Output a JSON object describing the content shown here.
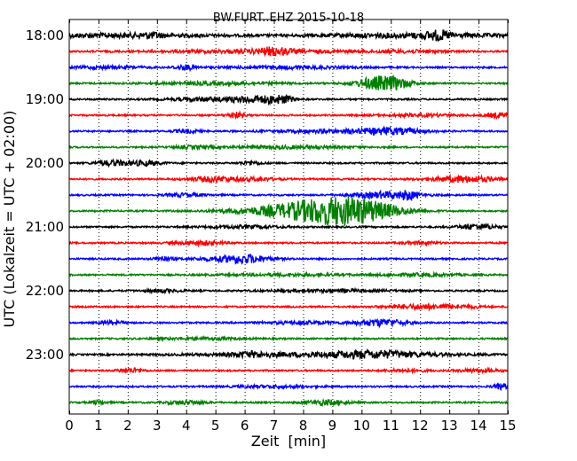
{
  "chart_data": {
    "type": "line",
    "title": "BW.FURT..EHZ 2015-10-18",
    "xlabel": "Zeit  [min]",
    "ylabel": "UTC (Lokalzeit = UTC + 02:00)",
    "xlim": [
      0,
      15
    ],
    "x_ticks": [
      "0",
      "1",
      "2",
      "3",
      "4",
      "5",
      "6",
      "7",
      "8",
      "9",
      "10",
      "11",
      "12",
      "13",
      "14",
      "15"
    ],
    "y_ticks": [
      "18:00",
      "19:00",
      "20:00",
      "21:00",
      "22:00",
      "23:00"
    ],
    "grid": "vertical dotted",
    "trace_colors": [
      "#000000",
      "#ff0000",
      "#0000ff",
      "#008000"
    ],
    "traces": [
      {
        "start": "18:00",
        "bursts": [
          [
            1.5,
            2.5,
            2.2
          ],
          [
            2.8,
            0.3,
            1.8
          ],
          [
            11.8,
            2.5,
            2.5
          ],
          [
            12.6,
            0.3,
            3.5
          ]
        ]
      },
      {
        "start": "18:15",
        "bursts": [
          [
            7.0,
            0.4,
            3.5
          ],
          [
            6.5,
            2.5,
            1.5
          ],
          [
            11.5,
            1.0,
            1.2
          ]
        ]
      },
      {
        "start": "18:30",
        "bursts": [
          [
            1.2,
            1.0,
            1.3
          ],
          [
            4.0,
            0.3,
            2.5
          ],
          [
            7.5,
            1.5,
            1.4
          ]
        ]
      },
      {
        "start": "18:45",
        "bursts": [
          [
            10.5,
            0.5,
            6.5
          ],
          [
            11.2,
            0.4,
            4.5
          ],
          [
            5.0,
            1.5,
            1.4
          ]
        ]
      },
      {
        "start": "19:00",
        "bursts": [
          [
            6.5,
            0.6,
            3.5
          ],
          [
            7.3,
            0.3,
            3.0
          ],
          [
            4.8,
            1.0,
            1.8
          ]
        ]
      },
      {
        "start": "19:15",
        "bursts": [
          [
            5.7,
            0.2,
            3.2
          ],
          [
            14.7,
            0.3,
            2.8
          ],
          [
            12.0,
            1.0,
            1.2
          ]
        ]
      },
      {
        "start": "19:30",
        "bursts": [
          [
            11.0,
            0.8,
            3.2
          ],
          [
            9.0,
            1.5,
            1.4
          ],
          [
            4.0,
            0.3,
            1.8
          ]
        ]
      },
      {
        "start": "19:45",
        "bursts": [
          [
            7.5,
            1.5,
            1.4
          ],
          [
            4.2,
            0.5,
            1.4
          ]
        ]
      },
      {
        "start": "20:00",
        "bursts": [
          [
            1.5,
            0.4,
            3.0
          ],
          [
            2.6,
            0.4,
            2.5
          ],
          [
            6.2,
            0.3,
            1.8
          ]
        ]
      },
      {
        "start": "20:15",
        "bursts": [
          [
            5.0,
            0.6,
            3.0
          ],
          [
            13.5,
            0.8,
            3.5
          ],
          [
            6.5,
            0.5,
            1.5
          ]
        ]
      },
      {
        "start": "20:30",
        "bursts": [
          [
            10.8,
            0.8,
            3.5
          ],
          [
            11.6,
            0.2,
            3.5
          ],
          [
            4.0,
            0.5,
            1.8
          ]
        ]
      },
      {
        "start": "20:45",
        "bursts": [
          [
            8.8,
            1.3,
            12.0
          ],
          [
            10.0,
            1.0,
            6.5
          ],
          [
            6.5,
            1.2,
            2.0
          ]
        ]
      },
      {
        "start": "21:00",
        "bursts": [
          [
            14.0,
            0.5,
            2.8
          ],
          [
            6.0,
            1.0,
            1.4
          ]
        ]
      },
      {
        "start": "21:15",
        "bursts": [
          [
            4.5,
            0.6,
            2.2
          ],
          [
            12.0,
            0.5,
            1.4
          ]
        ]
      },
      {
        "start": "21:30",
        "bursts": [
          [
            6.0,
            0.5,
            3.2
          ],
          [
            5.5,
            1.0,
            2.0
          ],
          [
            3.2,
            0.2,
            2.5
          ]
        ]
      },
      {
        "start": "21:45",
        "bursts": [
          [
            7.5,
            1.5,
            1.2
          ],
          [
            12.0,
            1.0,
            1.3
          ]
        ]
      },
      {
        "start": "22:00",
        "bursts": [
          [
            9.0,
            1.5,
            1.2
          ],
          [
            3.2,
            0.5,
            1.4
          ]
        ]
      },
      {
        "start": "22:15",
        "bursts": [
          [
            12.0,
            0.8,
            2.5
          ],
          [
            13.5,
            0.5,
            1.4
          ]
        ]
      },
      {
        "start": "22:30",
        "bursts": [
          [
            10.7,
            0.6,
            3.8
          ],
          [
            8.0,
            1.0,
            1.4
          ],
          [
            1.5,
            0.3,
            2.0
          ]
        ]
      },
      {
        "start": "22:45",
        "bursts": [
          [
            4.5,
            1.0,
            1.2
          ]
        ]
      },
      {
        "start": "23:00",
        "bursts": [
          [
            9.0,
            3.0,
            2.2
          ],
          [
            10.5,
            1.0,
            2.5
          ],
          [
            6.2,
            0.5,
            2.0
          ]
        ]
      },
      {
        "start": "23:15",
        "bursts": [
          [
            2.1,
            0.3,
            2.5
          ],
          [
            14.0,
            0.5,
            1.8
          ],
          [
            11.5,
            0.5,
            1.4
          ]
        ]
      },
      {
        "start": "23:30",
        "bursts": [
          [
            14.8,
            0.2,
            3.0
          ],
          [
            7.0,
            1.0,
            1.2
          ]
        ]
      },
      {
        "start": "23:45",
        "bursts": [
          [
            8.8,
            0.5,
            2.8
          ],
          [
            4.0,
            0.5,
            2.0
          ],
          [
            1.0,
            0.2,
            2.2
          ]
        ]
      }
    ]
  }
}
